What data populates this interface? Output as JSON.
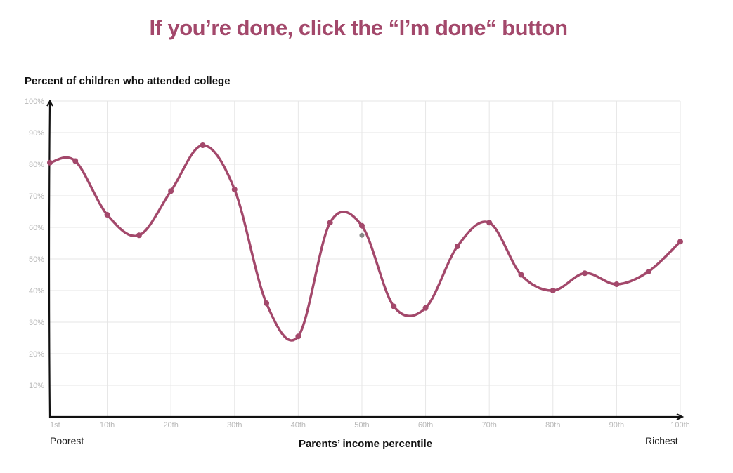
{
  "prompt": "If you’re done, click the “I’m done“ button",
  "chart_data": {
    "type": "line",
    "title": "",
    "ylabel": "Percent of children who attended college",
    "xlabel": "Parents’ income percentile",
    "x_end_labels": {
      "left": "Poorest",
      "right": "Richest"
    },
    "xlim": [
      1,
      100
    ],
    "ylim": [
      0,
      100
    ],
    "x_ticks": [
      {
        "value": 1,
        "label": "1st"
      },
      {
        "value": 10,
        "label": "10th"
      },
      {
        "value": 20,
        "label": "20th"
      },
      {
        "value": 30,
        "label": "30th"
      },
      {
        "value": 40,
        "label": "40th"
      },
      {
        "value": 50,
        "label": "50th"
      },
      {
        "value": 60,
        "label": "60th"
      },
      {
        "value": 70,
        "label": "70th"
      },
      {
        "value": 80,
        "label": "80th"
      },
      {
        "value": 90,
        "label": "90th"
      },
      {
        "value": 100,
        "label": "100th"
      }
    ],
    "y_ticks": [
      {
        "value": 10,
        "label": "10%"
      },
      {
        "value": 20,
        "label": "20%"
      },
      {
        "value": 30,
        "label": "30%"
      },
      {
        "value": 40,
        "label": "40%"
      },
      {
        "value": 50,
        "label": "50%"
      },
      {
        "value": 60,
        "label": "60%"
      },
      {
        "value": 70,
        "label": "70%"
      },
      {
        "value": 80,
        "label": "80%"
      },
      {
        "value": 90,
        "label": "90%"
      },
      {
        "value": 100,
        "label": "100%"
      }
    ],
    "grid": true,
    "series": [
      {
        "color": "#a3486b",
        "x": [
          1,
          5,
          10,
          15,
          20,
          25,
          30,
          35,
          40,
          45,
          50,
          55,
          60,
          65,
          70,
          75,
          80,
          85,
          90,
          95,
          100
        ],
        "y": [
          80.5,
          81,
          64,
          57.5,
          71.5,
          86,
          72,
          36,
          25.5,
          61.5,
          60.5,
          35,
          34.5,
          54,
          61.5,
          45,
          40,
          45.5,
          42,
          46,
          55.5
        ]
      }
    ],
    "reference_points": [
      {
        "x": 50,
        "y": 57.5,
        "color": "#888888"
      }
    ]
  }
}
